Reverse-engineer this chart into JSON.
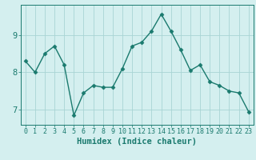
{
  "x": [
    0,
    1,
    2,
    3,
    4,
    5,
    6,
    7,
    8,
    9,
    10,
    11,
    12,
    13,
    14,
    15,
    16,
    17,
    18,
    19,
    20,
    21,
    22,
    23
  ],
  "y": [
    8.3,
    8.0,
    8.5,
    8.7,
    8.2,
    6.85,
    7.45,
    7.65,
    7.6,
    7.6,
    8.1,
    8.7,
    8.8,
    9.1,
    9.55,
    9.1,
    8.6,
    8.05,
    8.2,
    7.75,
    7.65,
    7.5,
    7.45,
    6.95
  ],
  "line_color": "#1a7a6e",
  "marker": "D",
  "markersize": 2.5,
  "linewidth": 1.0,
  "xlabel": "Humidex (Indice chaleur)",
  "bg_color": "#d4efef",
  "grid_color": "#a8d4d4",
  "xlim": [
    -0.5,
    23.5
  ],
  "ylim": [
    6.6,
    9.8
  ],
  "yticks": [
    7,
    8,
    9
  ],
  "xticks": [
    0,
    1,
    2,
    3,
    4,
    5,
    6,
    7,
    8,
    9,
    10,
    11,
    12,
    13,
    14,
    15,
    16,
    17,
    18,
    19,
    20,
    21,
    22,
    23
  ],
  "tick_color": "#1a7a6e",
  "xlabel_fontsize": 7.5,
  "tick_fontsize": 6.0,
  "ytick_fontsize": 7.5
}
